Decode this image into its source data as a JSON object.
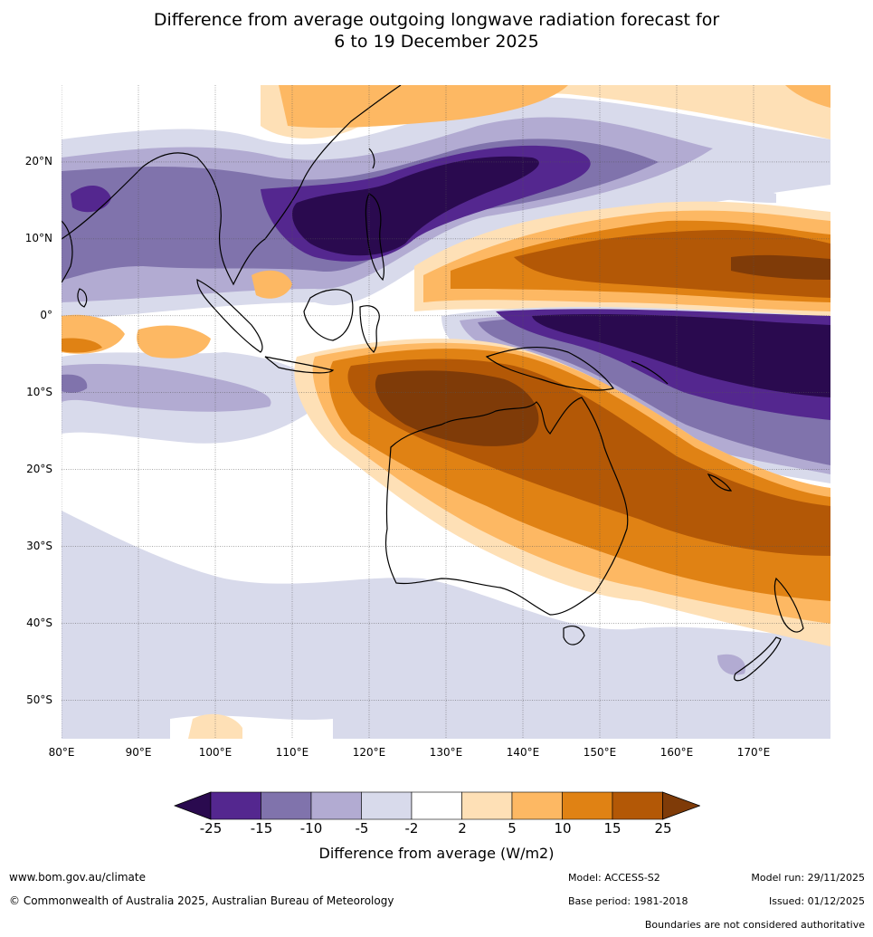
{
  "title": {
    "line1": "Difference from average outgoing longwave radiation forecast for",
    "line2": "6 to 19 December 2025"
  },
  "map": {
    "lat_labels": [
      "20°N",
      "10°N",
      "0°",
      "10°S",
      "20°S",
      "30°S",
      "40°S",
      "50°S"
    ],
    "lon_labels": [
      "80°E",
      "90°E",
      "100°E",
      "110°E",
      "120°E",
      "130°E",
      "140°E",
      "150°E",
      "160°E",
      "170°E"
    ],
    "lat_values": [
      20,
      10,
      0,
      -10,
      -20,
      -30,
      -40,
      -50
    ],
    "lon_values": [
      80,
      90,
      100,
      110,
      120,
      130,
      140,
      150,
      160,
      170
    ],
    "lon_range": [
      80,
      180
    ],
    "lat_range": [
      -55,
      30
    ]
  },
  "colorbar": {
    "ticks": [
      "-25",
      "-15",
      "-10",
      "-5",
      "-2",
      "2",
      "5",
      "10",
      "15",
      "25"
    ],
    "colors": [
      "#2a0a4f",
      "#54278f",
      "#8073ac",
      "#b2abd2",
      "#d8daeb",
      "#ffffff",
      "#fee0b6",
      "#fdb863",
      "#e08214",
      "#b35806",
      "#7f3b08"
    ],
    "label": "Difference from average (W/m2)"
  },
  "footer": {
    "website": "www.bom.gov.au/climate",
    "copyright": "© Commonwealth of Australia 2025, Australian Bureau of Meteorology",
    "model": "Model: ACCESS-S2",
    "base_period": "Base period: 1981-2018",
    "model_run": "Model run: 29/11/2025",
    "issued": "Issued: 01/12/2025",
    "disclaimer": "Boundaries are not considered authoritative"
  }
}
